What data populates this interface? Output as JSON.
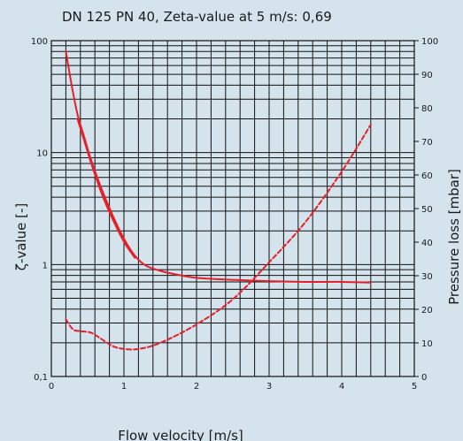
{
  "chart_data": {
    "type": "line",
    "title": "DN 125 PN 40, Zeta-value at 5 m/s: 0,69",
    "xlabel": "Flow velocity [m/s]",
    "ylabel_left": "ζ-value [-]",
    "ylabel_right": "Pressure loss [mbar]",
    "xlim": [
      0,
      5
    ],
    "ylim_left": [
      0.1,
      100
    ],
    "ylim_right": [
      0,
      100
    ],
    "y_left_scale": "log",
    "y_right_scale": "linear",
    "grid": true,
    "x_ticks": [
      "0",
      "1",
      "2",
      "3",
      "4",
      "5"
    ],
    "y_left_ticks": [
      {
        "value": 0.1,
        "label": "0,1"
      },
      {
        "value": 1,
        "label": "1"
      },
      {
        "value": 10,
        "label": "10"
      },
      {
        "value": 100,
        "label": "100"
      }
    ],
    "y_right_ticks": [
      "0",
      "10",
      "20",
      "30",
      "40",
      "50",
      "60",
      "70",
      "80",
      "90",
      "100"
    ],
    "colors": {
      "curve": "#e4202a",
      "grid": "#111111",
      "background": "#d4e3ec"
    },
    "series": [
      {
        "axis": "left",
        "style": "solid",
        "x": [
          0.2,
          0.28,
          0.36,
          0.45,
          0.55,
          0.7,
          0.85,
          1.0,
          1.15,
          1.3,
          1.5,
          1.7,
          2.0,
          2.5,
          3.0,
          3.5,
          4.0,
          4.4
        ],
        "y": [
          80,
          40,
          22,
          14,
          8.5,
          4.6,
          2.7,
          1.7,
          1.2,
          0.98,
          0.88,
          0.82,
          0.76,
          0.73,
          0.71,
          0.7,
          0.7,
          0.69
        ]
      },
      {
        "axis": "left",
        "style": "solid",
        "x": [
          0.36,
          0.45,
          0.55,
          0.7,
          0.85,
          1.0,
          1.15
        ],
        "y": [
          20,
          13,
          8.0,
          4.2,
          2.5,
          1.6,
          1.15
        ]
      },
      {
        "axis": "right",
        "style": "dashed",
        "x": [
          0.2,
          0.3,
          0.4,
          0.55,
          0.7,
          0.85,
          1.0,
          1.2,
          1.5,
          2.0,
          2.5,
          3.0,
          3.5,
          4.0,
          4.4
        ],
        "y": [
          17,
          14,
          13.5,
          13,
          11,
          9,
          8.2,
          8.2,
          10,
          15.5,
          23,
          34,
          46,
          61,
          75
        ]
      }
    ]
  }
}
